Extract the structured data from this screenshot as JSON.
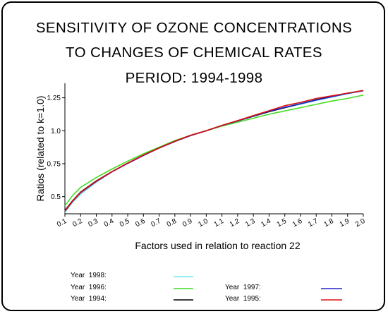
{
  "chart_data": {
    "type": "line",
    "title_lines": [
      "SENSITIVITY OF OZONE CONCENTRATIONS",
      "TO CHANGES OF CHEMICAL RATES",
      "PERIOD: 1994-1998"
    ],
    "xlabel": "Factors used in relation to reaction 22",
    "ylabel": "Ratios (related to k=1.0)",
    "xlim": [
      0.1,
      2.0
    ],
    "ylim": [
      0.37,
      1.36
    ],
    "x_ticks": [
      "0.1",
      "0.2",
      "0.3",
      "0.4",
      "0.5",
      "0.6",
      "0.7",
      "0.8",
      "0.9",
      "1.0",
      "1.1",
      "1.2",
      "1.3",
      "1.4",
      "1.5",
      "1.6",
      "1.7",
      "1.8",
      "1.9",
      "2.0"
    ],
    "y_ticks": [
      "0.5",
      "0.75",
      "1.0",
      "1.25"
    ],
    "grid": false,
    "legend_placement": "bottom",
    "x": [
      0.1,
      0.15,
      0.2,
      0.3,
      0.4,
      0.5,
      0.6,
      0.7,
      0.8,
      0.9,
      1.0,
      1.1,
      1.2,
      1.3,
      1.4,
      1.5,
      1.6,
      1.7,
      1.8,
      1.9,
      2.0
    ],
    "series": [
      {
        "name": "Year 1998:",
        "color": "#66e8f2",
        "values": [
          0.38,
          0.46,
          0.52,
          0.61,
          0.69,
          0.755,
          0.815,
          0.87,
          0.92,
          0.965,
          1.0,
          1.04,
          1.075,
          1.11,
          1.145,
          1.175,
          1.2,
          1.23,
          1.255,
          1.28,
          1.305
        ]
      },
      {
        "name": "Year 1996:",
        "color": "#44dd22",
        "values": [
          0.43,
          0.51,
          0.57,
          0.645,
          0.71,
          0.77,
          0.825,
          0.875,
          0.925,
          0.965,
          1.0,
          1.035,
          1.065,
          1.095,
          1.125,
          1.15,
          1.175,
          1.2,
          1.225,
          1.245,
          1.27
        ]
      },
      {
        "name": "Year 1994:",
        "color": "#000000",
        "values": [
          0.395,
          0.47,
          0.535,
          0.62,
          0.69,
          0.755,
          0.815,
          0.87,
          0.92,
          0.965,
          1.0,
          1.04,
          1.075,
          1.11,
          1.145,
          1.175,
          1.205,
          1.235,
          1.26,
          1.285,
          1.305
        ]
      },
      {
        "name": "Year 1997:",
        "color": "#2222cc",
        "values": [
          0.39,
          0.465,
          0.53,
          0.615,
          0.688,
          0.752,
          0.812,
          0.868,
          0.918,
          0.963,
          1.0,
          1.04,
          1.075,
          1.112,
          1.148,
          1.178,
          1.205,
          1.232,
          1.258,
          1.283,
          1.303
        ]
      },
      {
        "name": "Year 1995:",
        "color": "#dd1111",
        "values": [
          0.39,
          0.468,
          0.532,
          0.618,
          0.69,
          0.755,
          0.815,
          0.87,
          0.92,
          0.965,
          1.0,
          1.04,
          1.077,
          1.115,
          1.152,
          1.19,
          1.215,
          1.245,
          1.265,
          1.285,
          1.305
        ]
      }
    ]
  }
}
